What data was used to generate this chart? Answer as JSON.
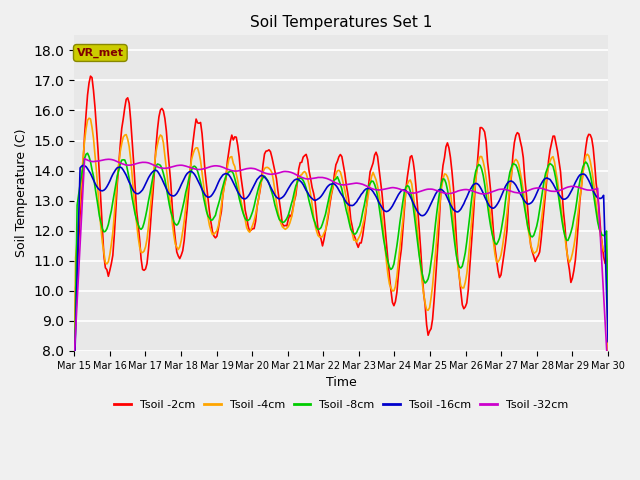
{
  "title": "Soil Temperatures Set 1",
  "xlabel": "Time",
  "ylabel": "Soil Temperature (C)",
  "ylim": [
    8.0,
    18.5
  ],
  "yticks": [
    8.0,
    9.0,
    10.0,
    11.0,
    12.0,
    13.0,
    14.0,
    15.0,
    16.0,
    17.0,
    18.0
  ],
  "plot_bg_color": "#e8e8e8",
  "fig_bg_color": "#f0f0f0",
  "series_colors": {
    "Tsoil -2cm": "#ff0000",
    "Tsoil -4cm": "#ffa500",
    "Tsoil -8cm": "#00cc00",
    "Tsoil -16cm": "#0000cc",
    "Tsoil -32cm": "#cc00cc"
  },
  "vr_met_box_color": "#cccc00",
  "vr_met_text_color": "#800000",
  "x_tick_labels": [
    "Mar 15",
    "Mar 16",
    "Mar 17",
    "Mar 18",
    "Mar 19",
    "Mar 20",
    "Mar 21",
    "Mar 22",
    "Mar 23",
    "Mar 24",
    "Mar 25",
    "Mar 26",
    "Mar 27",
    "Mar 28",
    "Mar 29",
    "Mar 30"
  ],
  "linewidth": 1.2
}
